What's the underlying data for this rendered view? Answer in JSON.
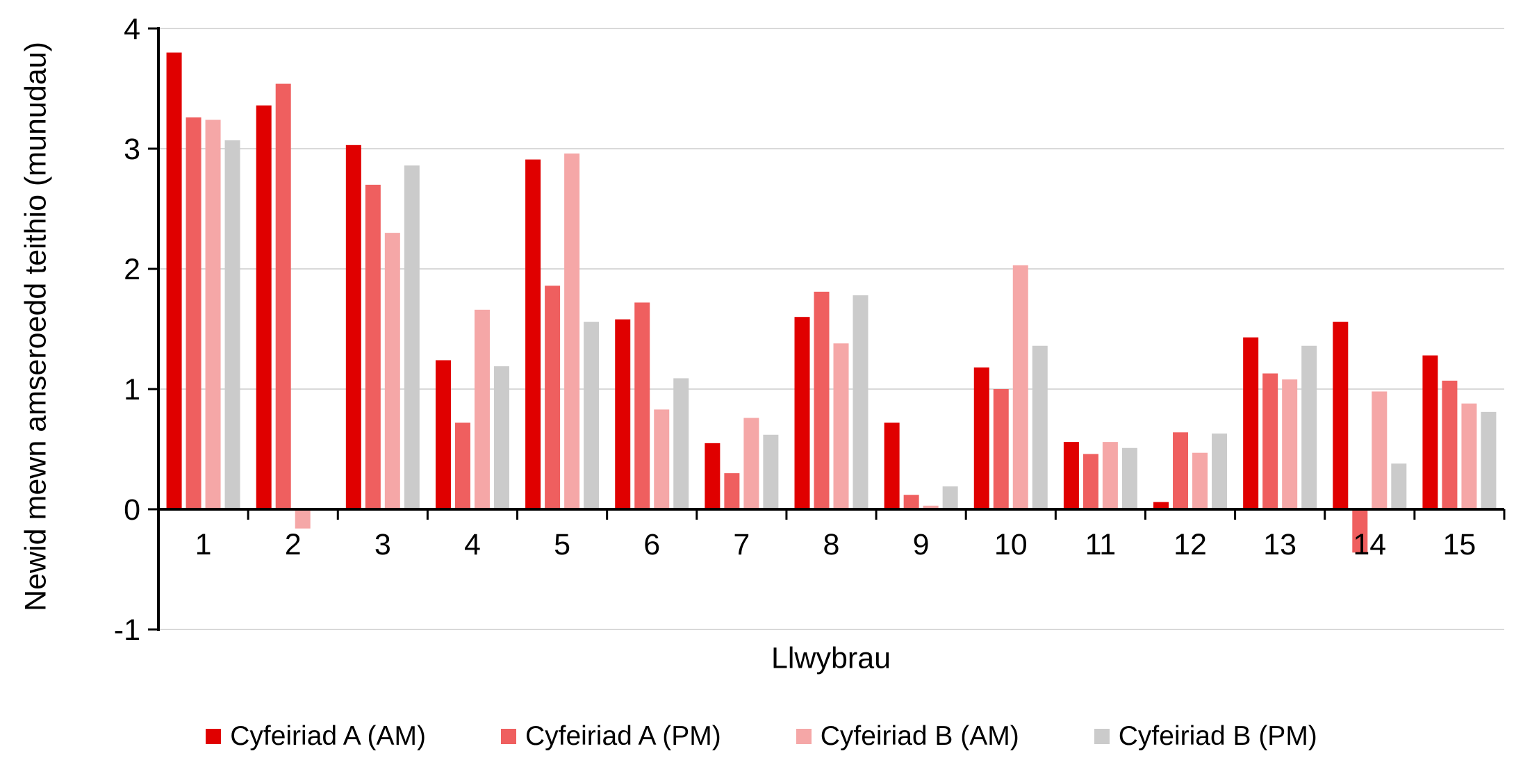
{
  "chart_data": {
    "type": "bar",
    "title": "",
    "xlabel": "Llwybrau",
    "ylabel": "Newid mewn amseroedd teithio (munudau)",
    "categories": [
      "1",
      "2",
      "3",
      "4",
      "5",
      "6",
      "7",
      "8",
      "9",
      "10",
      "11",
      "12",
      "13",
      "14",
      "15"
    ],
    "series": [
      {
        "name": "Cyfeiriad A (AM)",
        "color": "#e00000",
        "values": [
          3.8,
          3.36,
          3.03,
          1.24,
          2.91,
          1.58,
          0.55,
          1.6,
          0.72,
          1.18,
          0.56,
          0.06,
          1.43,
          1.56,
          1.28
        ]
      },
      {
        "name": "Cyfeiriad A (PM)",
        "color": "#ef5f5f",
        "values": [
          3.26,
          3.54,
          2.7,
          0.72,
          1.86,
          1.72,
          0.3,
          1.81,
          0.12,
          1.0,
          0.46,
          0.64,
          1.13,
          -0.36,
          1.07
        ]
      },
      {
        "name": "Cyfeiriad B (AM)",
        "color": "#f5a7a7",
        "values": [
          3.24,
          -0.16,
          2.3,
          1.66,
          2.96,
          0.83,
          0.76,
          1.38,
          0.03,
          2.03,
          0.56,
          0.47,
          1.08,
          0.98,
          0.88
        ]
      },
      {
        "name": "Cyfeiriad B (PM)",
        "color": "#cbcbcb",
        "values": [
          3.07,
          0,
          2.86,
          1.19,
          1.56,
          1.09,
          0.62,
          1.78,
          0.19,
          1.36,
          0.51,
          0.63,
          1.36,
          0.38,
          0.81
        ]
      }
    ],
    "ylim": [
      -1,
      4
    ],
    "yticks": [
      4,
      3,
      2,
      1,
      0,
      -1
    ],
    "grid": true,
    "legend_position": "bottom"
  },
  "colors": {
    "gridline": "#d9d9d9",
    "axis": "#000000",
    "background": "#ffffff",
    "text": "#000000"
  }
}
